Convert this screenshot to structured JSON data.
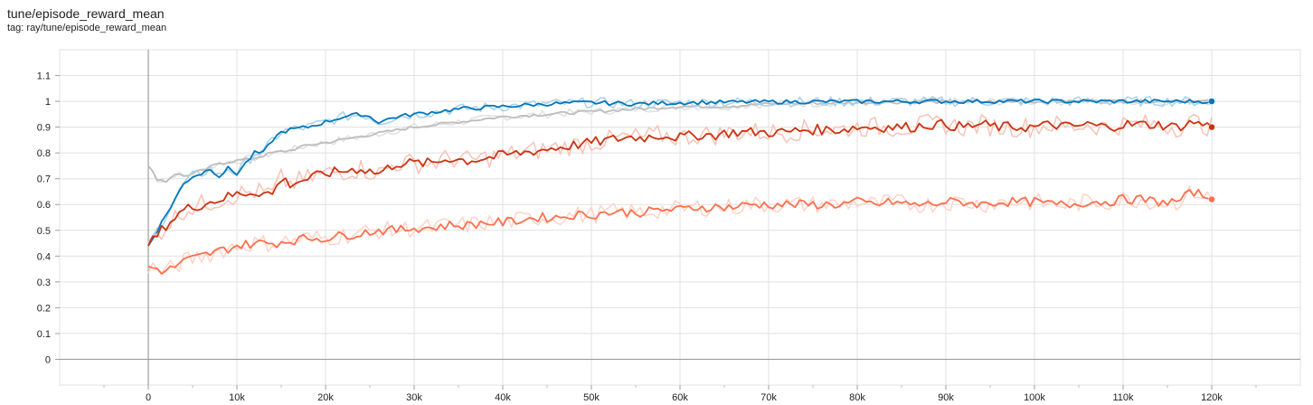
{
  "card": {
    "title": "tune/episode_reward_mean",
    "tag": "tag: ray/tune/episode_reward_mean"
  },
  "chart_data": {
    "type": "line",
    "title": "tune/episode_reward_mean",
    "xlabel": "",
    "ylabel": "",
    "xlim": [
      -10000,
      130000
    ],
    "ylim": [
      -0.1,
      1.2
    ],
    "x_ticks": [
      0,
      10000,
      20000,
      30000,
      40000,
      50000,
      60000,
      70000,
      80000,
      90000,
      100000,
      110000,
      120000
    ],
    "x_tick_labels": [
      "0",
      "10k",
      "20k",
      "30k",
      "40k",
      "50k",
      "60k",
      "70k",
      "80k",
      "90k",
      "100k",
      "110k",
      "120k"
    ],
    "y_ticks": [
      0,
      0.1,
      0.2,
      0.3,
      0.4,
      0.5,
      0.6,
      0.7,
      0.8,
      0.9,
      1,
      1.1
    ],
    "y_tick_labels": [
      "0",
      "0.1",
      "0.2",
      "0.3",
      "0.4",
      "0.5",
      "0.6",
      "0.7",
      "0.8",
      "0.9",
      "1",
      "1.1"
    ],
    "grid": true,
    "smoothing_shown": true,
    "series": [
      {
        "color": "#bdbdbd",
        "raw_color": "#e0e0e0",
        "x": [
          0,
          1000,
          2000,
          3000,
          4000,
          6000,
          8000,
          10000,
          12000,
          14000,
          16000,
          18000,
          20000,
          25000,
          30000,
          35000,
          40000,
          45000,
          50000,
          55000,
          60000,
          65000,
          70000,
          80000,
          90000,
          100000,
          110000,
          120000
        ],
        "values": [
          0.75,
          0.7,
          0.69,
          0.72,
          0.71,
          0.73,
          0.76,
          0.77,
          0.78,
          0.8,
          0.81,
          0.83,
          0.84,
          0.87,
          0.9,
          0.92,
          0.94,
          0.95,
          0.96,
          0.97,
          0.98,
          0.98,
          0.99,
          0.995,
          0.998,
          0.999,
          1.0,
          1.0
        ]
      },
      {
        "color": "#0077bb",
        "raw_color": "#a9d1ec",
        "x": [
          0,
          1000,
          2000,
          3000,
          4000,
          5000,
          6000,
          7000,
          8000,
          9000,
          10000,
          11000,
          12000,
          13000,
          14000,
          15000,
          16000,
          18000,
          20000,
          22000,
          24000,
          25000,
          26000,
          28000,
          30000,
          35000,
          40000,
          45000,
          50000,
          55000,
          60000,
          70000,
          80000,
          90000,
          100000,
          110000,
          120000
        ],
        "values": [
          0.44,
          0.5,
          0.56,
          0.62,
          0.68,
          0.71,
          0.72,
          0.74,
          0.71,
          0.74,
          0.72,
          0.76,
          0.8,
          0.8,
          0.85,
          0.88,
          0.89,
          0.9,
          0.92,
          0.94,
          0.95,
          0.94,
          0.92,
          0.94,
          0.95,
          0.97,
          0.98,
          0.99,
          0.995,
          0.99,
          0.995,
          0.998,
          0.999,
          1.0,
          1.0,
          1.0,
          1.0
        ]
      },
      {
        "color": "#cc3311",
        "raw_color": "#f5c3b8",
        "x": [
          0,
          2000,
          4000,
          6000,
          8000,
          10000,
          12000,
          14000,
          15000,
          16000,
          18000,
          20000,
          22000,
          24000,
          26000,
          28000,
          30000,
          32000,
          34000,
          36000,
          38000,
          40000,
          42000,
          44000,
          46000,
          48000,
          50000,
          52000,
          54000,
          56000,
          58000,
          60000,
          62000,
          64000,
          66000,
          68000,
          70000,
          72000,
          74000,
          76000,
          78000,
          80000,
          82000,
          84000,
          86000,
          88000,
          90000,
          92000,
          94000,
          96000,
          98000,
          100000,
          102000,
          104000,
          106000,
          108000,
          110000,
          112000,
          114000,
          116000,
          118000,
          120000
        ],
        "values": [
          0.44,
          0.52,
          0.58,
          0.6,
          0.62,
          0.64,
          0.65,
          0.64,
          0.7,
          0.68,
          0.7,
          0.72,
          0.73,
          0.74,
          0.72,
          0.76,
          0.76,
          0.76,
          0.78,
          0.77,
          0.78,
          0.79,
          0.8,
          0.81,
          0.82,
          0.83,
          0.84,
          0.85,
          0.86,
          0.86,
          0.87,
          0.86,
          0.87,
          0.87,
          0.88,
          0.88,
          0.88,
          0.88,
          0.89,
          0.89,
          0.89,
          0.9,
          0.9,
          0.9,
          0.9,
          0.91,
          0.91,
          0.9,
          0.91,
          0.9,
          0.9,
          0.9,
          0.91,
          0.9,
          0.91,
          0.9,
          0.91,
          0.91,
          0.91,
          0.9,
          0.92,
          0.9
        ]
      },
      {
        "color": "#ff6f4c",
        "raw_color": "#ffd3c7",
        "x": [
          0,
          2000,
          4000,
          6000,
          8000,
          10000,
          12000,
          14000,
          16000,
          18000,
          20000,
          22000,
          24000,
          26000,
          28000,
          30000,
          32000,
          34000,
          36000,
          38000,
          40000,
          42000,
          44000,
          46000,
          48000,
          50000,
          52000,
          54000,
          56000,
          58000,
          60000,
          62000,
          64000,
          66000,
          68000,
          70000,
          72000,
          74000,
          76000,
          78000,
          80000,
          82000,
          84000,
          86000,
          88000,
          90000,
          92000,
          94000,
          96000,
          98000,
          100000,
          102000,
          104000,
          106000,
          108000,
          110000,
          112000,
          114000,
          116000,
          118000,
          120000
        ],
        "values": [
          0.36,
          0.34,
          0.38,
          0.4,
          0.42,
          0.44,
          0.45,
          0.45,
          0.46,
          0.47,
          0.47,
          0.48,
          0.49,
          0.5,
          0.5,
          0.51,
          0.51,
          0.52,
          0.52,
          0.53,
          0.53,
          0.54,
          0.55,
          0.55,
          0.56,
          0.56,
          0.57,
          0.57,
          0.57,
          0.58,
          0.58,
          0.59,
          0.59,
          0.59,
          0.6,
          0.6,
          0.6,
          0.6,
          0.6,
          0.6,
          0.61,
          0.6,
          0.61,
          0.6,
          0.6,
          0.61,
          0.61,
          0.6,
          0.61,
          0.61,
          0.61,
          0.6,
          0.6,
          0.61,
          0.61,
          0.62,
          0.62,
          0.61,
          0.61,
          0.65,
          0.62
        ]
      }
    ]
  }
}
